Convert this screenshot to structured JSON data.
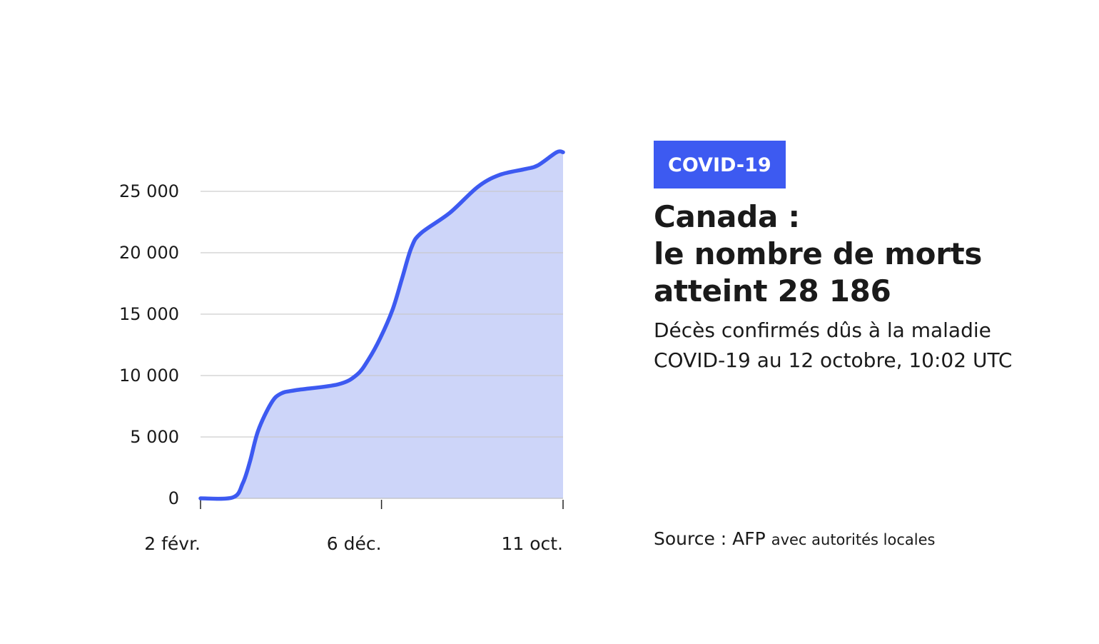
{
  "badge": "COVID-19",
  "title_lines": [
    "Canada :",
    "le nombre de morts",
    "atteint 28 186"
  ],
  "subtitle": "Décès confirmés dûs à la maladie COVID-19 au 12 octobre, 10:02 UTC",
  "source": {
    "main": "Source : AFP",
    "detail": "avec autorités locales"
  },
  "colors": {
    "line": "#3D5AF1",
    "fill": "#CDD5F9",
    "grid": "#C8C8C8",
    "badge": "#3D5AF1"
  },
  "chart_data": {
    "type": "area",
    "title": "Canada : le nombre de morts atteint 28 186",
    "xlabel": "",
    "ylabel": "",
    "ylim": [
      0,
      28186
    ],
    "xlim": [
      0,
      617
    ],
    "grid": true,
    "y_ticks": [
      0,
      5000,
      10000,
      15000,
      20000,
      25000
    ],
    "y_tick_labels": [
      "0",
      "5 000",
      "10 000",
      "15 000",
      "20 000",
      "25 000"
    ],
    "x_ticks": [
      0,
      308,
      617
    ],
    "x_tick_labels": [
      "2 févr.",
      "6 déc.",
      "11 oct."
    ],
    "series": [
      {
        "name": "Décès confirmés",
        "x": [
          0,
          55,
          72,
          84,
          98,
          120,
          136,
          161,
          234,
          266,
          286,
          306,
          327,
          343,
          359,
          375,
          424,
          472,
          509,
          553,
          574,
          606,
          617
        ],
        "values": [
          0,
          75,
          1240,
          2980,
          5500,
          7730,
          8510,
          8800,
          9280,
          10060,
          11320,
          13060,
          15390,
          17910,
          20430,
          21590,
          23240,
          25370,
          26340,
          26820,
          27110,
          28180,
          28186
        ]
      }
    ]
  }
}
